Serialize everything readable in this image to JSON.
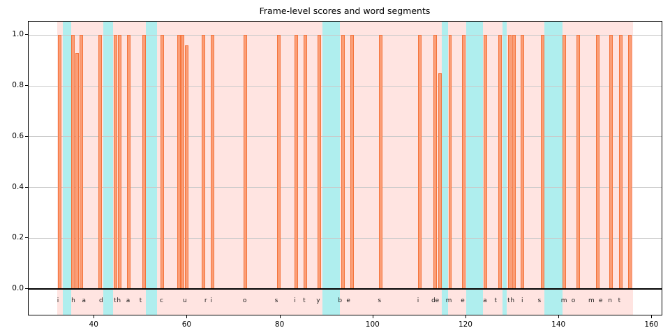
{
  "title": "Frame-level scores and word segments",
  "sentence": "i had that curiosity beside me at this moment",
  "colors": {
    "background": "#ffffff",
    "speech_band": "#FFE4E1",
    "pause_band": "#AFEEEE",
    "bar_fill": "#FB9E77",
    "bar_edge": "#F4743C",
    "gridline": "#c9c9c9",
    "zero_line": "#000000",
    "axis": "#000000",
    "letter_text": "#1a1a1a"
  },
  "chart_data": {
    "type": "bar",
    "title": "Frame-level scores and word segments",
    "xlabel": "",
    "ylabel": "",
    "xlim": [
      26.0,
      162.2
    ],
    "ylim": [
      -0.1018,
      1.0536
    ],
    "grid": "horizontal",
    "legend": "none",
    "xticks": [
      40,
      60,
      80,
      100,
      120,
      140,
      160
    ],
    "yticks": [
      {
        "value": 0.0,
        "label": "0.0"
      },
      {
        "value": 0.2,
        "label": "0.2"
      },
      {
        "value": 0.4,
        "label": "0.4"
      },
      {
        "value": 0.6,
        "label": "0.6"
      },
      {
        "value": 0.8,
        "label": "0.8"
      },
      {
        "value": 1.0,
        "label": "1.0"
      }
    ],
    "speech_region": [
      32.1,
      156.1
    ],
    "pause_bands": [
      [
        33.3,
        35.2
      ],
      [
        42.1,
        44.1
      ],
      [
        51.3,
        53.7
      ],
      [
        89.2,
        93.0
      ],
      [
        114.9,
        116.3
      ],
      [
        120.2,
        123.8
      ],
      [
        128.0,
        128.9
      ],
      [
        137.0,
        140.9
      ]
    ],
    "bar_width": 0.75,
    "bars": [
      {
        "x": 32.7,
        "h": 1.0
      },
      {
        "x": 35.6,
        "h": 1.0
      },
      {
        "x": 36.4,
        "h": 0.93
      },
      {
        "x": 37.3,
        "h": 1.0
      },
      {
        "x": 41.4,
        "h": 1.0
      },
      {
        "x": 44.7,
        "h": 1.0
      },
      {
        "x": 45.6,
        "h": 1.0
      },
      {
        "x": 47.6,
        "h": 1.0
      },
      {
        "x": 50.8,
        "h": 1.0
      },
      {
        "x": 54.7,
        "h": 1.0
      },
      {
        "x": 58.3,
        "h": 1.0
      },
      {
        "x": 59.15,
        "h": 1.0
      },
      {
        "x": 60.0,
        "h": 0.96
      },
      {
        "x": 63.6,
        "h": 1.0
      },
      {
        "x": 65.5,
        "h": 1.0
      },
      {
        "x": 72.7,
        "h": 1.0
      },
      {
        "x": 79.8,
        "h": 1.0
      },
      {
        "x": 83.6,
        "h": 1.0
      },
      {
        "x": 85.5,
        "h": 1.0
      },
      {
        "x": 88.5,
        "h": 1.0
      },
      {
        "x": 93.7,
        "h": 1.0
      },
      {
        "x": 95.6,
        "h": 1.0
      },
      {
        "x": 101.7,
        "h": 1.0
      },
      {
        "x": 110.2,
        "h": 1.0
      },
      {
        "x": 113.5,
        "h": 1.0
      },
      {
        "x": 114.45,
        "h": 0.85
      },
      {
        "x": 116.7,
        "h": 1.0
      },
      {
        "x": 119.6,
        "h": 1.0
      },
      {
        "x": 124.3,
        "h": 1.0
      },
      {
        "x": 127.4,
        "h": 1.0
      },
      {
        "x": 129.5,
        "h": 1.0
      },
      {
        "x": 130.4,
        "h": 1.0
      },
      {
        "x": 132.3,
        "h": 1.0
      },
      {
        "x": 136.6,
        "h": 1.0
      },
      {
        "x": 141.3,
        "h": 1.0
      },
      {
        "x": 144.2,
        "h": 1.0
      },
      {
        "x": 148.4,
        "h": 1.0
      },
      {
        "x": 151.3,
        "h": 1.0
      },
      {
        "x": 153.4,
        "h": 1.0
      },
      {
        "x": 155.3,
        "h": 1.0
      }
    ],
    "letters": [
      {
        "ch": "i",
        "x": 32.3
      },
      {
        "ch": "h",
        "x": 35.6
      },
      {
        "ch": "a",
        "x": 37.9
      },
      {
        "ch": "d",
        "x": 41.6
      },
      {
        "ch": "t",
        "x": 44.6
      },
      {
        "ch": "h",
        "x": 45.4
      },
      {
        "ch": "a",
        "x": 47.4
      },
      {
        "ch": "t",
        "x": 50.1
      },
      {
        "ch": "c",
        "x": 54.6
      },
      {
        "ch": "u",
        "x": 59.6
      },
      {
        "ch": "r",
        "x": 64.1
      },
      {
        "ch": "i",
        "x": 65.3
      },
      {
        "ch": "o",
        "x": 72.5
      },
      {
        "ch": "s",
        "x": 79.3
      },
      {
        "ch": "i",
        "x": 83.3
      },
      {
        "ch": "t",
        "x": 85.3
      },
      {
        "ch": "y",
        "x": 88.3
      },
      {
        "ch": "b",
        "x": 93.0
      },
      {
        "ch": "e",
        "x": 94.8
      },
      {
        "ch": "s",
        "x": 101.5
      },
      {
        "ch": "i",
        "x": 109.8
      },
      {
        "ch": "d",
        "x": 113.1
      },
      {
        "ch": "e",
        "x": 113.9
      },
      {
        "ch": "m",
        "x": 116.4
      },
      {
        "ch": "e",
        "x": 119.4
      },
      {
        "ch": "a",
        "x": 124.2
      },
      {
        "ch": "t",
        "x": 126.5
      },
      {
        "ch": "t",
        "x": 129.3
      },
      {
        "ch": "h",
        "x": 130.1
      },
      {
        "ch": "i",
        "x": 132.2
      },
      {
        "ch": "s",
        "x": 135.9
      },
      {
        "ch": "m",
        "x": 141.2
      },
      {
        "ch": "o",
        "x": 143.2
      },
      {
        "ch": "m",
        "x": 147.1
      },
      {
        "ch": "e",
        "x": 149.1
      },
      {
        "ch": "n",
        "x": 151.1
      },
      {
        "ch": "t",
        "x": 153.1
      }
    ]
  }
}
